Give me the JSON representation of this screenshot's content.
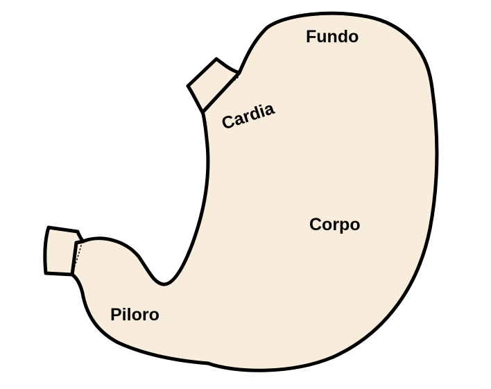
{
  "labels": {
    "fundo": "Fundo",
    "cardia": "Cardia",
    "corpo": "Corpo",
    "piloro": "Piloro"
  },
  "colors": {
    "organ_fill": "#f8eddc",
    "outline": "#000000",
    "background": "#ffffff"
  }
}
